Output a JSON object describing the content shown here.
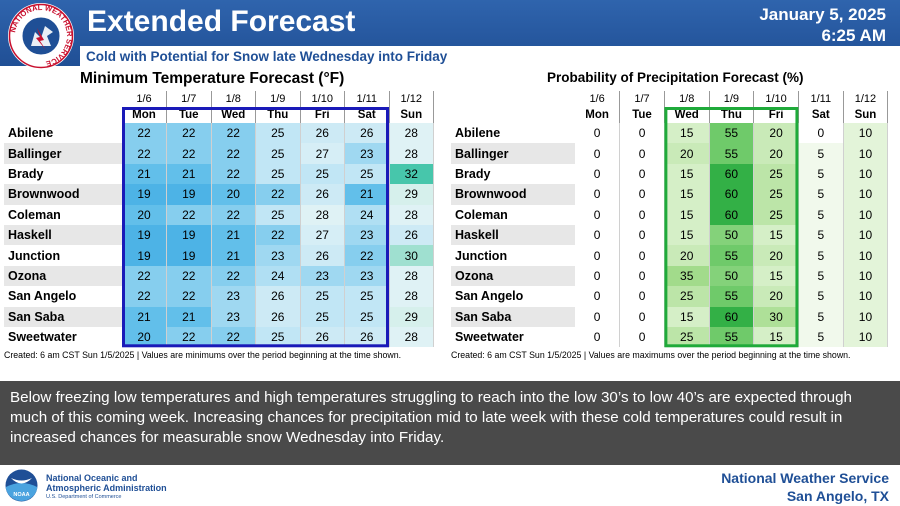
{
  "header": {
    "title": "Extended Forecast",
    "date": "January 5, 2025",
    "time": "6:25 AM",
    "subtitle": "Cold with Potential for Snow late Wednesday into Friday",
    "logo_text": "NATIONAL WEATHER SERVICE"
  },
  "min_temp": {
    "title": "Minimum Temperature Forecast (°F)",
    "dates": [
      "1/6",
      "1/7",
      "1/8",
      "1/9",
      "1/10",
      "1/11",
      "1/12"
    ],
    "days": [
      "Mon",
      "Tue",
      "Wed",
      "Thu",
      "Fri",
      "Sat",
      "Sun"
    ],
    "rows": [
      {
        "city": "Abilene",
        "values": [
          22,
          22,
          22,
          25,
          26,
          26,
          28
        ]
      },
      {
        "city": "Ballinger",
        "values": [
          22,
          22,
          22,
          25,
          27,
          23,
          28
        ]
      },
      {
        "city": "Brady",
        "values": [
          21,
          21,
          22,
          25,
          25,
          25,
          32
        ]
      },
      {
        "city": "Brownwood",
        "values": [
          19,
          19,
          20,
          22,
          26,
          21,
          29
        ]
      },
      {
        "city": "Coleman",
        "values": [
          20,
          22,
          22,
          25,
          28,
          24,
          28
        ]
      },
      {
        "city": "Haskell",
        "values": [
          19,
          19,
          21,
          22,
          27,
          23,
          26
        ]
      },
      {
        "city": "Junction",
        "values": [
          19,
          19,
          21,
          23,
          26,
          22,
          30
        ]
      },
      {
        "city": "Ozona",
        "values": [
          22,
          22,
          22,
          24,
          23,
          23,
          28
        ]
      },
      {
        "city": "San Angelo",
        "values": [
          22,
          22,
          23,
          26,
          25,
          25,
          28
        ]
      },
      {
        "city": "San Saba",
        "values": [
          21,
          21,
          23,
          26,
          25,
          25,
          29
        ]
      },
      {
        "city": "Sweetwater",
        "values": [
          20,
          22,
          22,
          25,
          26,
          26,
          28
        ]
      }
    ],
    "caption": "Created: 6 am CST Sun 1/5/2025  |  Values are minimums over the period beginning at the time shown.",
    "highlight_color": "#1a1ab8"
  },
  "pop": {
    "title": "Probability of Precipitation Forecast (%)",
    "dates": [
      "1/6",
      "1/7",
      "1/8",
      "1/9",
      "1/10",
      "1/11",
      "1/12"
    ],
    "days": [
      "Mon",
      "Tue",
      "Wed",
      "Thu",
      "Fri",
      "Sat",
      "Sun"
    ],
    "rows": [
      {
        "city": "Abilene",
        "values": [
          0,
          0,
          15,
          55,
          20,
          0,
          10
        ]
      },
      {
        "city": "Ballinger",
        "values": [
          0,
          0,
          20,
          55,
          20,
          5,
          10
        ]
      },
      {
        "city": "Brady",
        "values": [
          0,
          0,
          15,
          60,
          25,
          5,
          10
        ]
      },
      {
        "city": "Brownwood",
        "values": [
          0,
          0,
          15,
          60,
          25,
          5,
          10
        ]
      },
      {
        "city": "Coleman",
        "values": [
          0,
          0,
          15,
          60,
          25,
          5,
          10
        ]
      },
      {
        "city": "Haskell",
        "values": [
          0,
          0,
          15,
          50,
          15,
          5,
          10
        ]
      },
      {
        "city": "Junction",
        "values": [
          0,
          0,
          20,
          55,
          20,
          5,
          10
        ]
      },
      {
        "city": "Ozona",
        "values": [
          0,
          0,
          35,
          50,
          15,
          5,
          10
        ]
      },
      {
        "city": "San Angelo",
        "values": [
          0,
          0,
          25,
          55,
          20,
          5,
          10
        ]
      },
      {
        "city": "San Saba",
        "values": [
          0,
          0,
          15,
          60,
          30,
          5,
          10
        ]
      },
      {
        "city": "Sweetwater",
        "values": [
          0,
          0,
          25,
          55,
          15,
          5,
          10
        ]
      }
    ],
    "caption": "Created: 6 am CST Sun 1/5/2025  |  Values are maximums over the period beginning at the time shown.",
    "highlight_color": "#1faa3a"
  },
  "description": "Below freezing low temperatures and high temperatures struggling to reach into the low 30’s to low 40’s are expected through much of this coming week. Increasing chances for precipitation mid to late week with these cold temperatures could result in increased chances for measurable snow Wednesday into Friday.",
  "footer": {
    "noaa_line1": "National Oceanic and",
    "noaa_line2": "Atmospheric Administration",
    "noaa_dept": "U.S. Department of Commerce",
    "noaa_logo_text": "NOAA",
    "office_line1": "National Weather Service",
    "office_line2": "San Angelo, TX"
  }
}
